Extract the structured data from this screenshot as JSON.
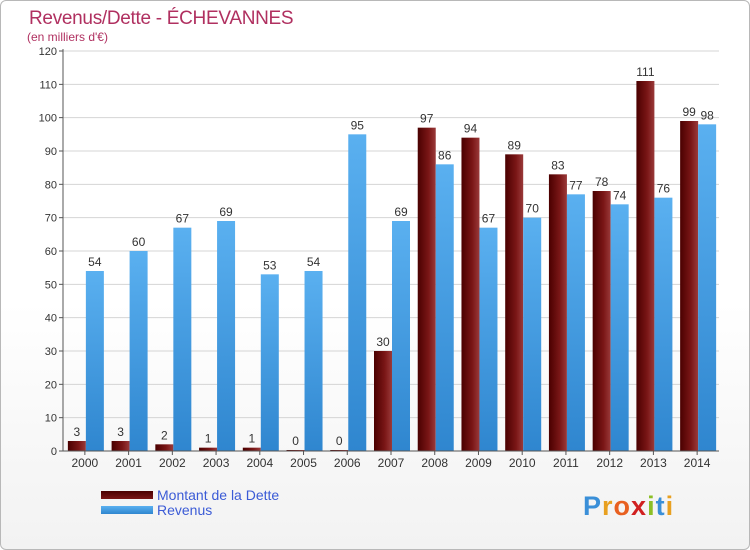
{
  "header": {
    "title": "Revenus/Dette - ÉCHEVANNES",
    "subtitle": "(en milliers d'€)"
  },
  "legend": [
    {
      "label": "Montant de la Dette",
      "color": "#6e0a0a"
    },
    {
      "label": "Revenus",
      "color": "#4aa3e8"
    }
  ],
  "logo": {
    "text": "Proxiti",
    "letters": [
      "P",
      "r",
      "o",
      "x",
      "i",
      "t",
      "i"
    ],
    "colors": [
      "#3a8fd8",
      "#e8a020",
      "#e86020",
      "#d02020",
      "#8cbf26",
      "#3a8fd8",
      "#e8a020"
    ]
  },
  "chart_data": {
    "type": "bar",
    "title": "Revenus/Dette - ÉCHEVANNES",
    "ylabel": "(en milliers d'€)",
    "xlabel": "",
    "ylim": [
      0,
      120
    ],
    "yticks": [
      0,
      10,
      20,
      30,
      40,
      50,
      60,
      70,
      80,
      90,
      100,
      110,
      120
    ],
    "grid": true,
    "categories": [
      "2000",
      "2001",
      "2002",
      "2003",
      "2004",
      "2005",
      "2006",
      "2007",
      "2008",
      "2009",
      "2010",
      "2011",
      "2012",
      "2013",
      "2014"
    ],
    "series": [
      {
        "name": "Montant de la Dette",
        "color": "#7a1f1f",
        "values": [
          3,
          3,
          2,
          1,
          1,
          0,
          0,
          30,
          97,
          94,
          89,
          83,
          78,
          111,
          99
        ]
      },
      {
        "name": "Revenus",
        "color": "#4aa3e8",
        "values": [
          54,
          60,
          67,
          69,
          53,
          54,
          95,
          69,
          86,
          67,
          70,
          77,
          74,
          76,
          98
        ]
      }
    ]
  }
}
